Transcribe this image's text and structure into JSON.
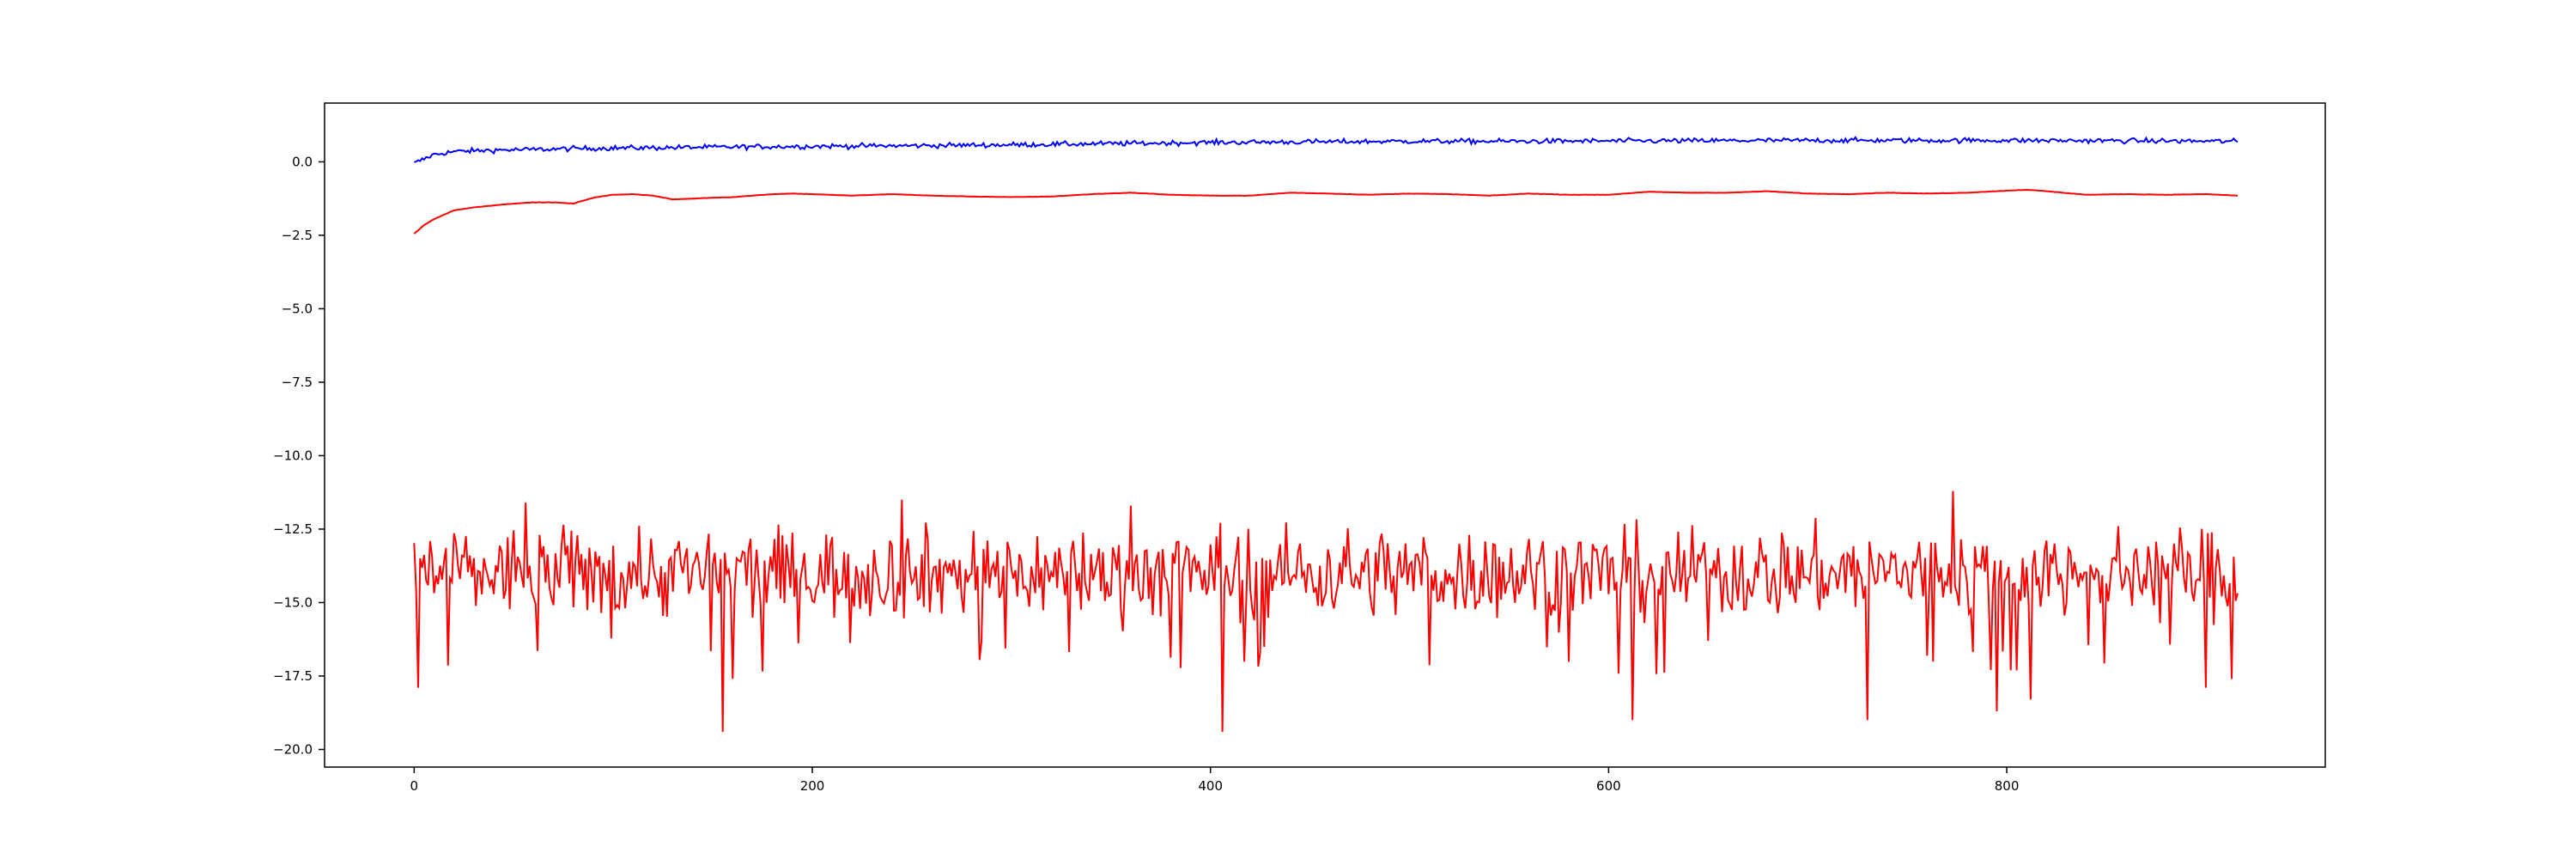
{
  "chart_data": {
    "type": "line",
    "title": "",
    "xlabel": "",
    "ylabel": "",
    "xlim": [
      -45,
      960
    ],
    "ylim": [
      -20.6,
      2.0
    ],
    "grid": false,
    "legend": "none",
    "x_ticks": [
      {
        "value": 0,
        "label": "0"
      },
      {
        "value": 200,
        "label": "200"
      },
      {
        "value": 400,
        "label": "400"
      },
      {
        "value": 600,
        "label": "600"
      },
      {
        "value": 800,
        "label": "800"
      }
    ],
    "y_ticks": [
      {
        "value": 0.0,
        "label": "0.0"
      },
      {
        "value": -2.5,
        "label": "−2.5"
      },
      {
        "value": -5.0,
        "label": "−5.0"
      },
      {
        "value": -7.5,
        "label": "−7.5"
      },
      {
        "value": -10.0,
        "label": "−10.0"
      },
      {
        "value": -12.5,
        "label": "−12.5"
      },
      {
        "value": -15.0,
        "label": "−15.0"
      },
      {
        "value": -17.5,
        "label": "−17.5"
      },
      {
        "value": -20.0,
        "label": "−20.0"
      }
    ],
    "n_points": 917,
    "series": [
      {
        "color": "#0000ff",
        "description_note": "",
        "x": [
          0,
          10,
          20,
          40,
          60,
          80,
          100,
          120,
          150,
          200,
          250,
          300,
          350,
          400,
          450,
          500,
          550,
          600,
          650,
          700,
          750,
          800,
          850,
          916
        ],
        "values": [
          -0.05,
          0.25,
          0.35,
          0.4,
          0.42,
          0.45,
          0.47,
          0.48,
          0.5,
          0.53,
          0.55,
          0.58,
          0.62,
          0.66,
          0.68,
          0.7,
          0.7,
          0.71,
          0.72,
          0.73,
          0.73,
          0.73,
          0.72,
          0.7
        ],
        "noise_amplitude": 0.12
      },
      {
        "color": "#ff0000",
        "x": [
          0,
          5,
          10,
          15,
          20,
          30,
          40,
          50,
          60,
          70,
          80,
          90,
          100,
          110,
          120,
          130,
          140,
          150,
          160,
          170,
          180,
          190,
          200,
          220,
          240,
          260,
          280,
          300,
          320,
          340,
          360,
          380,
          400,
          420,
          440,
          460,
          480,
          500,
          520,
          540,
          560,
          580,
          600,
          620,
          640,
          660,
          680,
          700,
          720,
          740,
          760,
          780,
          800,
          810,
          820,
          840,
          860,
          880,
          900,
          916
        ],
        "values": [
          -2.45,
          -2.15,
          -1.95,
          -1.8,
          -1.65,
          -1.55,
          -1.48,
          -1.42,
          -1.38,
          -1.38,
          -1.42,
          -1.22,
          -1.12,
          -1.1,
          -1.15,
          -1.28,
          -1.25,
          -1.22,
          -1.2,
          -1.15,
          -1.1,
          -1.08,
          -1.1,
          -1.15,
          -1.1,
          -1.15,
          -1.18,
          -1.2,
          -1.18,
          -1.1,
          -1.05,
          -1.12,
          -1.15,
          -1.15,
          -1.05,
          -1.08,
          -1.12,
          -1.08,
          -1.1,
          -1.15,
          -1.08,
          -1.12,
          -1.12,
          -1.02,
          -1.05,
          -1.05,
          -1.0,
          -1.08,
          -1.1,
          -1.05,
          -1.08,
          -1.05,
          -0.98,
          -0.95,
          -1.0,
          -1.12,
          -1.1,
          -1.12,
          -1.1,
          -1.15
        ]
      },
      {
        "color": "#ff0000",
        "x_start": 0,
        "x_end": 916,
        "mean": -14.0,
        "typical_range": [
          -16.5,
          -12.0
        ],
        "spikes": [
          {
            "x": 2,
            "value": -17.9
          },
          {
            "x": 155,
            "value": -19.4
          },
          {
            "x": 160,
            "value": -17.6
          },
          {
            "x": 406,
            "value": -19.4
          },
          {
            "x": 612,
            "value": -19.0
          },
          {
            "x": 730,
            "value": -19.0
          },
          {
            "x": 773,
            "value": -11.2
          },
          {
            "x": 795,
            "value": -18.7
          },
          {
            "x": 812,
            "value": -18.3
          },
          {
            "x": 900,
            "value": -17.9
          },
          {
            "x": 913,
            "value": -17.6
          },
          {
            "x": 56,
            "value": -11.6
          },
          {
            "x": 245,
            "value": -11.5
          },
          {
            "x": 360,
            "value": -11.7
          }
        ]
      }
    ]
  }
}
